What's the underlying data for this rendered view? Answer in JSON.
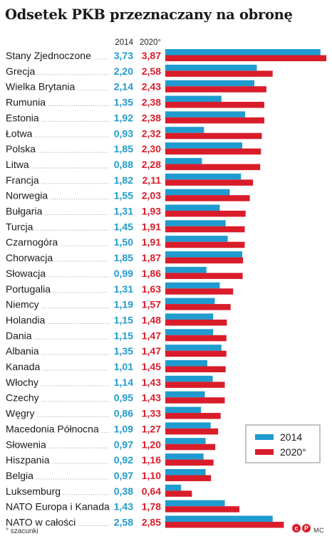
{
  "chart_data": {
    "type": "bar",
    "orientation": "horizontal",
    "title": "Odsetek PKB przeznaczany na obronę",
    "categories": [
      "Stany Zjednoczone",
      "Grecja",
      "Wielka Brytania",
      "Rumunia",
      "Estonia",
      "Łotwa",
      "Polska",
      "Litwa",
      "Francja",
      "Norwegia",
      "Bułgaria",
      "Turcja",
      "Czarnogóra",
      "Chorwacja",
      "Słowacja",
      "Portugalia",
      "Niemcy",
      "Holandia",
      "Dania",
      "Albania",
      "Kanada",
      "Włochy",
      "Czechy",
      "Węgry",
      "Macedonia Północna",
      "Słowenia",
      "Hiszpania",
      "Belgia",
      "Luksemburg",
      "NATO Europa i Kanada",
      "NATO w całości"
    ],
    "series": [
      {
        "name": "2014",
        "color": "#1f9bd0",
        "values": [
          3.73,
          2.2,
          2.14,
          1.35,
          1.92,
          0.93,
          1.85,
          0.88,
          1.82,
          1.55,
          1.31,
          1.45,
          1.5,
          1.85,
          0.99,
          1.31,
          1.19,
          1.15,
          1.15,
          1.35,
          1.01,
          1.14,
          0.95,
          0.86,
          1.09,
          0.97,
          0.92,
          0.97,
          0.38,
          1.43,
          2.58
        ],
        "labels": [
          "3,73",
          "2,20",
          "2,14",
          "1,35",
          "1,92",
          "0,93",
          "1,85",
          "0,88",
          "1,82",
          "1,55",
          "1,31",
          "1,45",
          "1,50",
          "1,85",
          "0,99",
          "1,31",
          "1,19",
          "1,15",
          "1,15",
          "1,35",
          "1,01",
          "1,14",
          "0,95",
          "0,86",
          "1,09",
          "0,97",
          "0,92",
          "0,97",
          "0,38",
          "1,43",
          "2,58"
        ]
      },
      {
        "name": "2020°",
        "color": "#d91c2a",
        "values": [
          3.87,
          2.58,
          2.43,
          2.38,
          2.38,
          2.32,
          2.3,
          2.28,
          2.11,
          2.03,
          1.93,
          1.91,
          1.91,
          1.87,
          1.86,
          1.63,
          1.57,
          1.48,
          1.47,
          1.47,
          1.45,
          1.43,
          1.43,
          1.33,
          1.27,
          1.2,
          1.16,
          1.1,
          0.64,
          1.78,
          2.85
        ],
        "labels": [
          "3,87",
          "2,58",
          "2,43",
          "2,38",
          "2,38",
          "2,32",
          "2,30",
          "2,28",
          "2,11",
          "2,03",
          "1,93",
          "1,91",
          "1,91",
          "1,87",
          "1,86",
          "1,63",
          "1,57",
          "1,48",
          "1,47",
          "1,47",
          "1,45",
          "1,43",
          "1,43",
          "1,33",
          "1,27",
          "1,20",
          "1,16",
          "1,10",
          "0,64",
          "1,78",
          "2,85"
        ]
      }
    ],
    "column_headers": [
      "2014",
      "2020°"
    ],
    "legend": {
      "position": "bottom-right",
      "items": [
        "2014",
        "2020°"
      ]
    },
    "grid": false
  },
  "footnote": "° szacunki",
  "logo_text": "cp",
  "author": "MC"
}
